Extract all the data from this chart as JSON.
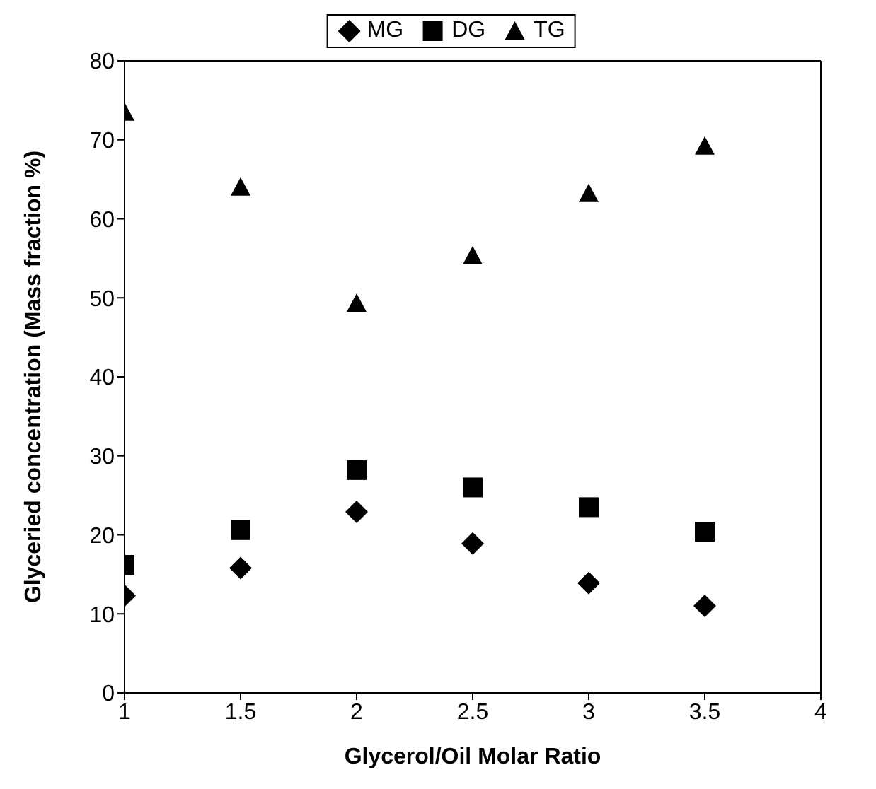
{
  "chart_data": {
    "type": "scatter",
    "xlabel": "Glycerol/Oil Molar Ratio",
    "ylabel": "Glyceried concentration (Mass fraction %)",
    "x": [
      1,
      1.5,
      2,
      2.5,
      3,
      3.5
    ],
    "series": [
      {
        "name": "MG",
        "color": "#000000",
        "marker": "diamond",
        "values": [
          12.3,
          15.8,
          22.9,
          18.9,
          13.9,
          11
        ]
      },
      {
        "name": "DG",
        "color": "#000000",
        "marker": "square",
        "values": [
          16.2,
          20.6,
          28.2,
          26,
          23.5,
          20.4
        ]
      },
      {
        "name": "TG",
        "color": "#000000",
        "marker": "triangle",
        "values": [
          73.5,
          64,
          49.3,
          55.3,
          63.2,
          69.2
        ]
      }
    ],
    "xlim": [
      1,
      4
    ],
    "xticks": [
      1,
      1.5,
      2,
      2.5,
      3,
      3.5,
      4
    ],
    "ylim": [
      0,
      80
    ],
    "yticks": [
      0,
      10,
      20,
      30,
      40,
      50,
      60,
      70,
      80
    ],
    "legend": "top"
  }
}
